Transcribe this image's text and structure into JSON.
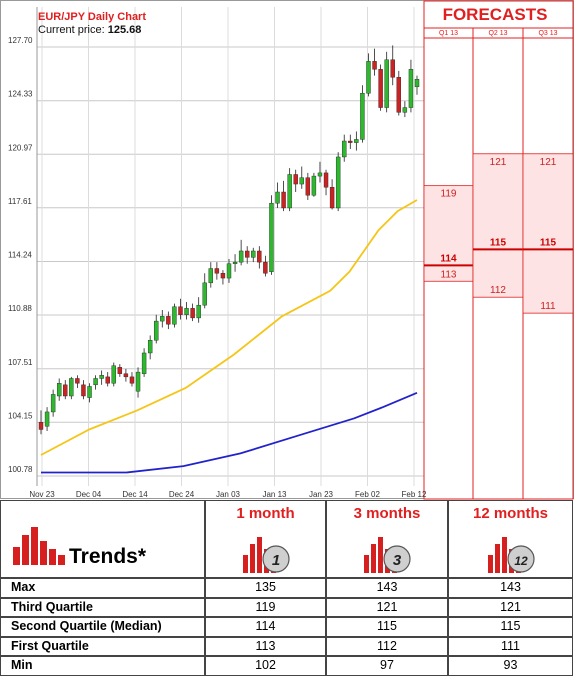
{
  "header": {
    "title": "EUR/JPY Daily Chart",
    "price_label": "Current price:",
    "price_value": "125.68",
    "forecasts_title": "FORECASTS",
    "quarters": [
      "Q1 13",
      "Q2 13",
      "Q3 13"
    ]
  },
  "chart_data": [
    {
      "type": "candlestick",
      "title": "EUR/JPY Daily Chart",
      "ylim": [
        100.78,
        127.7
      ],
      "y_ticks": [
        "127.70",
        "124.33",
        "120.97",
        "117.61",
        "114.24",
        "110.88",
        "107.51",
        "104.15",
        "100.78"
      ],
      "x_ticks": [
        "Nov 23",
        "Dec 04",
        "Dec 14",
        "Dec 24",
        "Jan 03",
        "Jan 13",
        "Jan 23",
        "Feb 02",
        "Feb 12"
      ],
      "grid": true,
      "candles": [
        [
          104.15,
          104.9,
          103.4,
          103.7
        ],
        [
          103.9,
          105.1,
          103.6,
          104.8
        ],
        [
          104.8,
          106.2,
          104.5,
          105.9
        ],
        [
          105.8,
          106.9,
          105.5,
          106.6
        ],
        [
          106.5,
          106.8,
          105.6,
          105.8
        ],
        [
          105.8,
          107.0,
          105.6,
          106.9
        ],
        [
          106.9,
          107.1,
          106.3,
          106.6
        ],
        [
          106.5,
          106.8,
          105.6,
          105.8
        ],
        [
          105.7,
          106.6,
          105.4,
          106.4
        ],
        [
          106.5,
          107.1,
          106.2,
          106.9
        ],
        [
          106.9,
          107.4,
          106.5,
          107.1
        ],
        [
          107.0,
          107.3,
          106.4,
          106.6
        ],
        [
          106.6,
          107.9,
          106.4,
          107.7
        ],
        [
          107.6,
          107.8,
          107.0,
          107.2
        ],
        [
          107.2,
          107.5,
          106.7,
          107.0
        ],
        [
          107.0,
          107.3,
          106.4,
          106.6
        ],
        [
          106.1,
          107.6,
          105.7,
          107.3
        ],
        [
          107.2,
          108.8,
          107.0,
          108.5
        ],
        [
          108.5,
          109.6,
          108.1,
          109.3
        ],
        [
          109.3,
          110.9,
          109.1,
          110.5
        ],
        [
          110.5,
          111.2,
          110.1,
          110.8
        ],
        [
          110.8,
          111.1,
          110.0,
          110.3
        ],
        [
          110.3,
          111.6,
          110.1,
          111.4
        ],
        [
          111.4,
          111.9,
          110.6,
          110.9
        ],
        [
          110.9,
          111.7,
          110.6,
          111.3
        ],
        [
          111.3,
          111.6,
          110.5,
          110.7
        ],
        [
          110.7,
          112.0,
          110.4,
          111.5
        ],
        [
          111.5,
          113.5,
          111.3,
          112.9
        ],
        [
          112.9,
          114.2,
          112.6,
          113.8
        ],
        [
          113.8,
          114.2,
          113.1,
          113.5
        ],
        [
          113.5,
          113.7,
          112.8,
          113.2
        ],
        [
          113.2,
          114.4,
          112.9,
          114.1
        ],
        [
          114.1,
          114.7,
          113.6,
          114.2
        ],
        [
          114.2,
          115.6,
          114.0,
          114.9
        ],
        [
          114.9,
          115.2,
          114.1,
          114.5
        ],
        [
          114.5,
          115.1,
          114.2,
          114.9
        ],
        [
          114.9,
          115.2,
          113.8,
          114.2
        ],
        [
          114.2,
          114.6,
          113.3,
          113.5
        ],
        [
          113.6,
          118.4,
          113.4,
          117.9
        ],
        [
          117.9,
          119.2,
          117.6,
          118.6
        ],
        [
          118.6,
          119.3,
          117.4,
          117.6
        ],
        [
          117.6,
          120.1,
          117.4,
          119.7
        ],
        [
          119.7,
          120.0,
          118.6,
          119.1
        ],
        [
          119.1,
          120.2,
          118.8,
          119.5
        ],
        [
          119.5,
          119.8,
          118.1,
          118.4
        ],
        [
          118.4,
          119.8,
          118.3,
          119.6
        ],
        [
          119.6,
          120.5,
          119.2,
          119.8
        ],
        [
          119.8,
          120.0,
          118.4,
          118.9
        ],
        [
          118.9,
          119.4,
          117.5,
          117.6
        ],
        [
          117.6,
          121.1,
          117.4,
          120.8
        ],
        [
          120.8,
          122.2,
          120.5,
          121.8
        ],
        [
          121.8,
          122.2,
          121.3,
          121.7
        ],
        [
          121.7,
          122.4,
          121.2,
          121.9
        ],
        [
          121.9,
          125.3,
          121.7,
          124.8
        ],
        [
          124.8,
          127.3,
          124.6,
          126.8
        ],
        [
          126.8,
          127.6,
          125.9,
          126.3
        ],
        [
          126.3,
          126.6,
          123.7,
          123.9
        ],
        [
          123.9,
          127.4,
          123.6,
          126.9
        ],
        [
          126.9,
          127.8,
          125.3,
          125.8
        ],
        [
          125.8,
          126.2,
          123.4,
          123.6
        ],
        [
          123.6,
          124.3,
          123.3,
          123.9
        ],
        [
          123.9,
          126.9,
          123.6,
          126.3
        ],
        [
          125.2,
          125.9,
          124.7,
          125.68
        ]
      ],
      "ma_short": [
        [
          0,
          102.1
        ],
        [
          10,
          103.7
        ],
        [
          20,
          104.9
        ],
        [
          30,
          106.3
        ],
        [
          40,
          108.4
        ],
        [
          50,
          110.8
        ],
        [
          55,
          111.6
        ],
        [
          60,
          112.4
        ],
        [
          64,
          113.6
        ],
        [
          70,
          116.2
        ],
        [
          74,
          117.4
        ],
        [
          78,
          118.1
        ]
      ],
      "ma_long": [
        [
          0,
          101.0
        ],
        [
          15,
          101.0
        ],
        [
          25,
          101.4
        ],
        [
          35,
          102.2
        ],
        [
          45,
          103.3
        ],
        [
          55,
          104.4
        ],
        [
          60,
          105.1
        ],
        [
          66,
          106.0
        ]
      ]
    },
    {
      "type": "forecast_ranges",
      "quarters": [
        "Q1 13",
        "Q2 13",
        "Q3 13"
      ],
      "third_quartile": [
        119,
        121,
        121
      ],
      "median": [
        114,
        115,
        115
      ],
      "first_quartile": [
        113,
        112,
        111
      ]
    }
  ],
  "colors": {
    "accent_red": "#e02020",
    "bull": "#2db82d",
    "bear": "#cc2222",
    "ma_short": "#f5c518",
    "ma_long": "#2222cc",
    "forecast_fill": "#fde3e3"
  },
  "table": {
    "trends_label": "Trends*",
    "columns": [
      {
        "label": "1 month",
        "icon_number": "1"
      },
      {
        "label": "3 months",
        "icon_number": "3"
      },
      {
        "label": "12 months",
        "icon_number": "12"
      }
    ],
    "rows": [
      {
        "label": "Max",
        "values": [
          "135",
          "143",
          "143"
        ]
      },
      {
        "label": "Third Quartile",
        "values": [
          "119",
          "121",
          "121"
        ]
      },
      {
        "label": "Second Quartile (Median)",
        "values": [
          "114",
          "115",
          "115"
        ]
      },
      {
        "label": "First Quartile",
        "values": [
          "113",
          "112",
          "111"
        ]
      },
      {
        "label": "Min",
        "values": [
          "102",
          "97",
          "93"
        ]
      }
    ]
  }
}
